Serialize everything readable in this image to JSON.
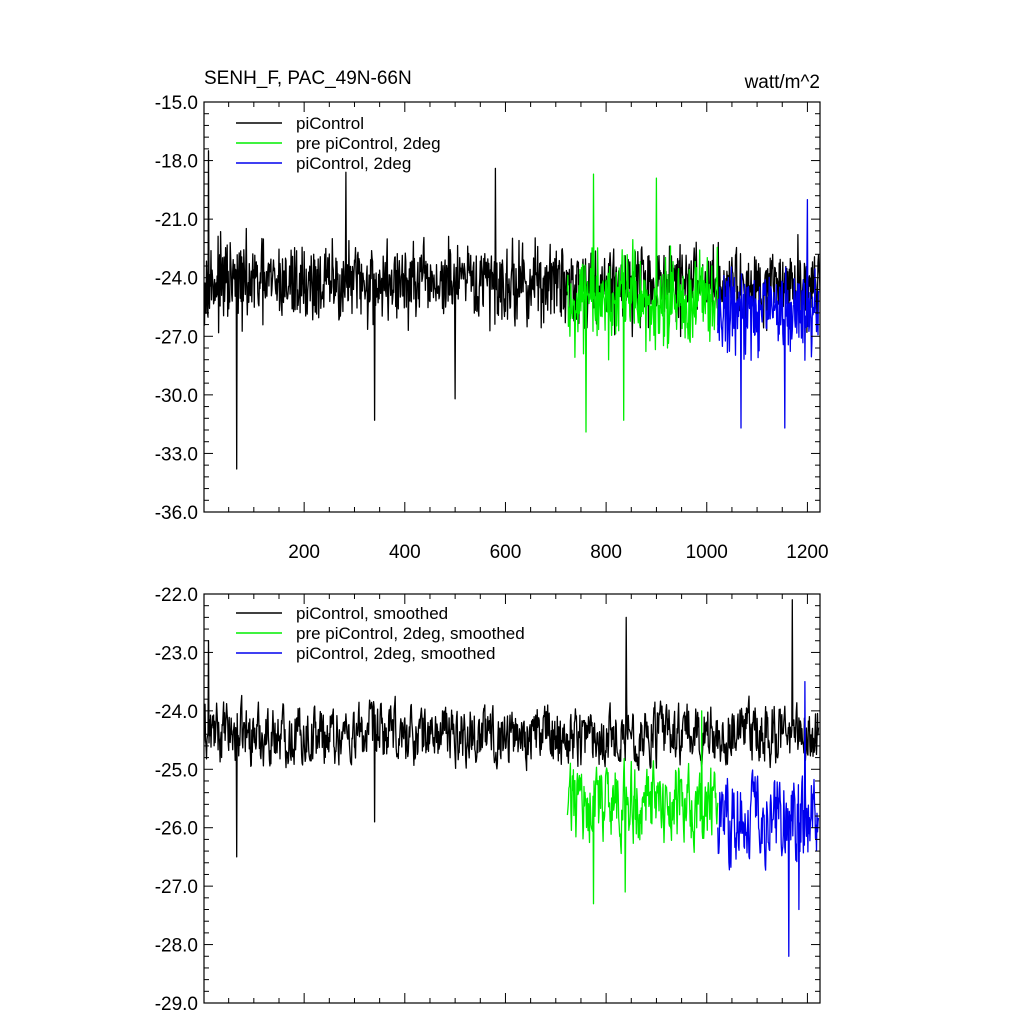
{
  "figure": {
    "title_left": "SENH_F, PAC_49N-66N",
    "title_right": "watt/m^2"
  },
  "chart_data": [
    {
      "type": "line",
      "title": "SENH_F, PAC_49N-66N",
      "units": "watt/m^2",
      "xlim": [
        1,
        1225
      ],
      "ylim": [
        -36.0,
        -15.0
      ],
      "x_ticks": [
        200,
        400,
        600,
        800,
        1000,
        1200
      ],
      "x_tick_labels": [
        "200",
        "400",
        "600",
        "800",
        "1000",
        "1200"
      ],
      "y_ticks": [
        -36.0,
        -33.0,
        -30.0,
        -27.0,
        -24.0,
        -21.0,
        -18.0,
        -15.0
      ],
      "y_tick_labels": [
        "-36.0",
        "-33.0",
        "-30.0",
        "-27.0",
        "-24.0",
        "-21.0",
        "-18.0",
        "-15.0"
      ],
      "legend": "top-left",
      "grid": false,
      "series": [
        {
          "name": "piControl",
          "color": "#000000",
          "x_range": [
            1,
            1225
          ],
          "mean": -24.3,
          "noise": 1.6,
          "min": -33.8,
          "max": -17.5,
          "extremes": [
            [
              10,
              -17.5
            ],
            [
              66,
              -33.8
            ],
            [
              340,
              -31.3
            ],
            [
              500,
              -30.2
            ],
            [
              283,
              -18.6
            ],
            [
              580,
              -18.4
            ]
          ]
        },
        {
          "name": "pre piControl, 2deg",
          "color": "#00ee00",
          "x_range": [
            723,
            1022
          ],
          "mean": -25.4,
          "noise": 2.0,
          "min": -31.9,
          "max": -18.7,
          "extremes": [
            [
              760,
              -31.9
            ],
            [
              835,
              -31.3
            ],
            [
              900,
              -18.9
            ],
            [
              775,
              -18.7
            ]
          ]
        },
        {
          "name": "piControl, 2deg",
          "color": "#0000ee",
          "x_range": [
            1022,
            1222
          ],
          "mean": -25.7,
          "noise": 1.7,
          "min": -31.7,
          "max": -20.0,
          "extremes": [
            [
              1068,
              -31.7
            ],
            [
              1155,
              -31.7
            ],
            [
              1200,
              -20.0
            ]
          ]
        }
      ]
    },
    {
      "type": "line",
      "xlim": [
        1,
        1225
      ],
      "ylim": [
        -29.0,
        -22.0
      ],
      "x_ticks": [
        200,
        400,
        600,
        800,
        1000,
        1200
      ],
      "y_ticks": [
        -29.0,
        -28.0,
        -27.0,
        -26.0,
        -25.0,
        -24.0,
        -23.0,
        -22.0
      ],
      "y_tick_labels": [
        "-29.0",
        "-28.0",
        "-27.0",
        "-26.0",
        "-25.0",
        "-24.0",
        "-23.0",
        "-22.0"
      ],
      "legend": "top-left",
      "grid": false,
      "series": [
        {
          "name": "piControl, smoothed",
          "color": "#000000",
          "x_range": [
            1,
            1222
          ],
          "mean": -24.4,
          "noise": 0.35,
          "min": -26.5,
          "max": -22.1,
          "extremes": [
            [
              10,
              -22.8
            ],
            [
              66,
              -26.5
            ],
            [
              340,
              -25.9
            ],
            [
              840,
              -22.4
            ],
            [
              1170,
              -22.1
            ]
          ]
        },
        {
          "name": "pre piControl, 2deg, smoothed",
          "color": "#00ee00",
          "x_range": [
            723,
            1022
          ],
          "mean": -25.6,
          "noise": 0.45,
          "min": -27.3,
          "max": -24.0,
          "extremes": [
            [
              775,
              -27.3
            ],
            [
              838,
              -27.1
            ],
            [
              990,
              -24.0
            ]
          ]
        },
        {
          "name": "piControl, 2deg, smoothed",
          "color": "#0000ee",
          "x_range": [
            1022,
            1222
          ],
          "mean": -25.8,
          "noise": 0.5,
          "min": -28.2,
          "max": -23.5,
          "extremes": [
            [
              1163,
              -28.2
            ],
            [
              1183,
              -27.4
            ],
            [
              1195,
              -23.5
            ]
          ]
        }
      ]
    }
  ]
}
